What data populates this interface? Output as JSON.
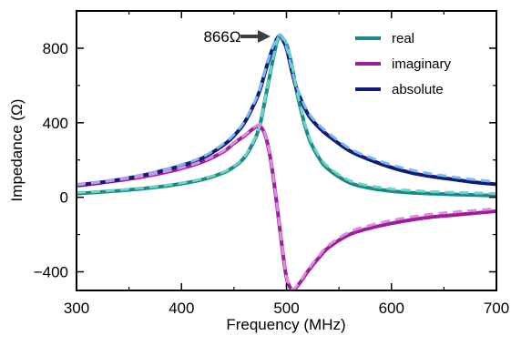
{
  "chart_data": {
    "type": "line",
    "xlabel": "Frequency (MHz)",
    "ylabel": "Impedance (Ω)",
    "xlim": [
      300,
      700
    ],
    "ylim": [
      -500,
      1000
    ],
    "xticks": [
      300,
      400,
      500,
      600,
      700
    ],
    "xtick_labels": [
      "300",
      "400",
      "500",
      "600",
      "700"
    ],
    "yticks": [
      -400,
      0,
      400,
      800
    ],
    "ytick_labels": [
      "−400",
      "0",
      "400",
      "800"
    ],
    "grid": false,
    "legend_position": "top-right",
    "annotation": {
      "text": "866Ω",
      "x": 493,
      "y": 866
    },
    "series": [
      {
        "name": "real",
        "color": "#1a8a84",
        "style": "solid",
        "x": [
          300,
          320,
          340,
          360,
          380,
          400,
          420,
          440,
          450,
          460,
          470,
          475,
          480,
          485,
          490,
          493,
          495,
          500,
          505,
          510,
          520,
          530,
          540,
          560,
          580,
          600,
          620,
          640,
          660,
          680,
          700
        ],
        "y": [
          20,
          27,
          35,
          45,
          57,
          73,
          95,
          132,
          164,
          214,
          313,
          395,
          535,
          680,
          815,
          866,
          862,
          820,
          710,
          560,
          340,
          220,
          150,
          78,
          49,
          33,
          24,
          19,
          15,
          12,
          9
        ]
      },
      {
        "name": "imaginary",
        "color": "#9b1e9b",
        "style": "solid",
        "x": [
          300,
          320,
          340,
          360,
          380,
          400,
          420,
          440,
          450,
          460,
          470,
          475,
          480,
          485,
          490,
          495,
          500,
          505,
          510,
          520,
          530,
          540,
          560,
          580,
          600,
          620,
          640,
          660,
          680,
          700
        ],
        "y": [
          62,
          75,
          90,
          107,
          128,
          155,
          190,
          245,
          290,
          330,
          375,
          380,
          330,
          200,
          0,
          -230,
          -430,
          -495,
          -480,
          -400,
          -330,
          -270,
          -200,
          -165,
          -140,
          -120,
          -105,
          -95,
          -85,
          -75
        ]
      },
      {
        "name": "absolute",
        "color": "#0f1a7a",
        "style": "solid",
        "x": [
          300,
          320,
          340,
          360,
          380,
          400,
          420,
          440,
          450,
          460,
          470,
          475,
          480,
          485,
          490,
          493,
          495,
          500,
          505,
          510,
          520,
          530,
          540,
          560,
          580,
          600,
          620,
          640,
          660,
          680,
          700
        ],
        "y": [
          65,
          78,
          94,
          114,
          140,
          170,
          210,
          280,
          330,
          400,
          510,
          580,
          680,
          770,
          840,
          866,
          860,
          800,
          680,
          580,
          450,
          380,
          330,
          250,
          200,
          160,
          130,
          110,
          95,
          80,
          70
        ]
      },
      {
        "name": "",
        "color": "#7ab8f0",
        "style": "dashed",
        "x": [
          300,
          320,
          340,
          360,
          380,
          400,
          420,
          440,
          450,
          460,
          470,
          475,
          480,
          485,
          490,
          493,
          495,
          500,
          505,
          510,
          520,
          530,
          540,
          560,
          580,
          600,
          620,
          640,
          660,
          680,
          700
        ],
        "y": [
          70,
          82,
          98,
          118,
          144,
          176,
          216,
          287,
          337,
          407,
          517,
          587,
          687,
          777,
          846,
          870,
          864,
          806,
          688,
          590,
          462,
          393,
          344,
          263,
          213,
          174,
          145,
          124,
          108,
          94,
          83
        ]
      },
      {
        "name": "",
        "color": "#6ad4cc",
        "style": "dashed",
        "x": [
          300,
          320,
          340,
          360,
          380,
          400,
          420,
          440,
          450,
          460,
          470,
          475,
          480,
          485,
          490,
          493,
          495,
          500,
          505,
          510,
          520,
          530,
          540,
          560,
          580,
          600,
          620,
          640,
          660,
          680,
          700
        ],
        "y": [
          25,
          31,
          39,
          49,
          61,
          77,
          99,
          136,
          168,
          218,
          317,
          398,
          538,
          683,
          818,
          868,
          864,
          824,
          716,
          568,
          350,
          232,
          162,
          90,
          61,
          45,
          36,
          30,
          26,
          23,
          20
        ]
      },
      {
        "name": "",
        "color": "#e08ae0",
        "style": "dashed",
        "x": [
          300,
          320,
          340,
          360,
          380,
          400,
          420,
          440,
          450,
          460,
          470,
          475,
          480,
          485,
          490,
          495,
          500,
          505,
          510,
          520,
          530,
          540,
          560,
          580,
          600,
          620,
          640,
          660,
          680,
          700
        ],
        "y": [
          66,
          79,
          94,
          111,
          132,
          159,
          194,
          249,
          294,
          334,
          379,
          384,
          334,
          204,
          4,
          -226,
          -426,
          -490,
          -475,
          -392,
          -320,
          -258,
          -186,
          -150,
          -124,
          -104,
          -89,
          -79,
          -70,
          -61
        ]
      }
    ]
  }
}
